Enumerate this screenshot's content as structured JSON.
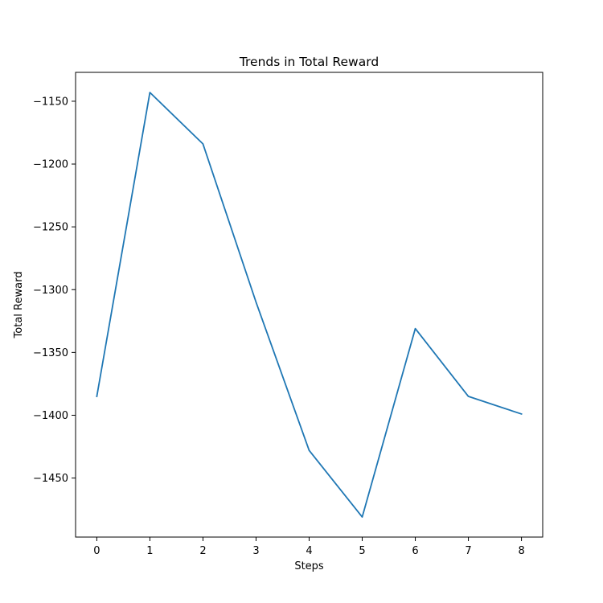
{
  "chart_data": {
    "type": "line",
    "title": "Trends in Total Reward",
    "xlabel": "Steps",
    "ylabel": "Total Reward",
    "x": [
      0,
      1,
      2,
      3,
      4,
      5,
      6,
      7,
      8
    ],
    "series": [
      {
        "values": [
          -1385,
          -1143,
          -1184,
          -1310,
          -1428,
          -1481,
          -1331,
          -1385,
          -1399
        ],
        "color": "#1f77b4"
      }
    ],
    "xlim": [
      -0.4,
      8.4
    ],
    "ylim": [
      -1497,
      -1127
    ],
    "xticks": [
      0,
      1,
      2,
      3,
      4,
      5,
      6,
      7,
      8
    ],
    "yticks": [
      -1450,
      -1400,
      -1350,
      -1300,
      -1250,
      -1200,
      -1150
    ],
    "ytick_labels": [
      "−1450",
      "−1400",
      "−1350",
      "−1300",
      "−1250",
      "−1200",
      "−1150"
    ],
    "grid": false,
    "legend": "none"
  }
}
